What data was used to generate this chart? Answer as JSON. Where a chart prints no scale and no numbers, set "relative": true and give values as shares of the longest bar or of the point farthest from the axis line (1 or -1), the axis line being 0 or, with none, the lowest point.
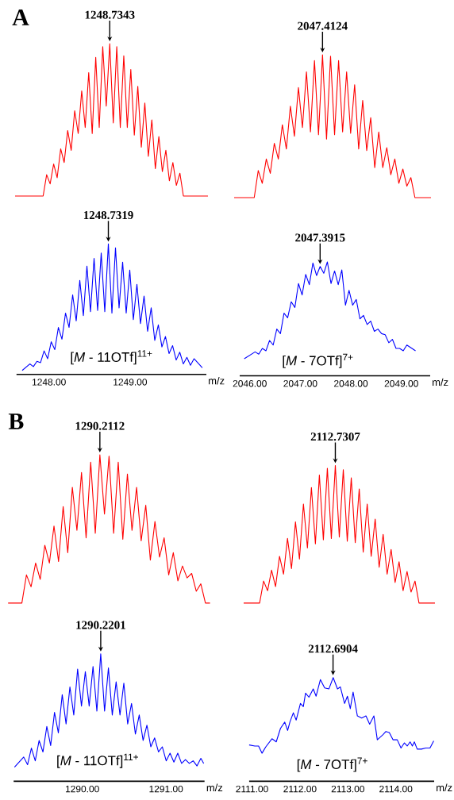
{
  "chart_data": [
    {
      "type": "line",
      "title": "A",
      "relative": true,
      "tick_labels": false,
      "categories": [
        null,
        null,
        null,
        null,
        null,
        null,
        null,
        null,
        null,
        null,
        null,
        null,
        null,
        null,
        null,
        null,
        null,
        null,
        null,
        null,
        null,
        null,
        null,
        null,
        null,
        null,
        null,
        null,
        null,
        null,
        null,
        null,
        null,
        null,
        null,
        null,
        null,
        null,
        null,
        null,
        null,
        null,
        null,
        null,
        null,
        null,
        null,
        null,
        null,
        null,
        null,
        null,
        null,
        null,
        null,
        null
      ],
      "series": [
        {
          "color": "#ff0000",
          "values": [
            0,
            0,
            0,
            0,
            0,
            0,
            0,
            0,
            0,
            0.14,
            0.08,
            0.21,
            0.12,
            0.31,
            0.22,
            0.43,
            0.3,
            0.56,
            0.41,
            0.69,
            0.45,
            0.81,
            0.41,
            0.91,
            0.45,
            0.98,
            0.59,
            1.0,
            0.48,
            0.98,
            0.45,
            0.92,
            0.45,
            0.83,
            0.4,
            0.72,
            0.32,
            0.61,
            0.26,
            0.5,
            0.18,
            0.39,
            0.16,
            0.3,
            0.1,
            0.22,
            0.07,
            0.15,
            0,
            0,
            0,
            0,
            0,
            0,
            0,
            0
          ]
        }
      ],
      "annotations": [
        {
          "text": "1248.7343",
          "y": 1.0
        }
      ]
    },
    {
      "type": "line",
      "relative": true,
      "tick_labels": false,
      "categories": [
        null,
        null,
        null,
        null,
        null,
        null,
        null,
        null,
        null,
        null,
        null,
        null,
        null,
        null,
        null,
        null,
        null,
        null,
        null,
        null,
        null,
        null,
        null,
        null,
        null,
        null,
        null,
        null,
        null,
        null,
        null,
        null,
        null,
        null,
        null,
        null,
        null,
        null,
        null,
        null,
        null,
        null,
        null,
        null,
        null,
        null,
        null,
        null,
        null,
        null
      ],
      "series": [
        {
          "color": "#ff0000",
          "values": [
            0,
            0,
            0,
            0,
            0,
            0,
            0.19,
            0.1,
            0.27,
            0.17,
            0.38,
            0.27,
            0.51,
            0.34,
            0.64,
            0.43,
            0.77,
            0.49,
            0.88,
            0.46,
            0.96,
            0.44,
            1.0,
            0.41,
            0.99,
            0.44,
            0.96,
            0.46,
            0.88,
            0.45,
            0.79,
            0.34,
            0.68,
            0.33,
            0.56,
            0.21,
            0.46,
            0.21,
            0.35,
            0.16,
            0.27,
            0.1,
            0.2,
            0.08,
            0.14,
            0,
            0,
            0,
            0,
            0
          ]
        }
      ],
      "annotations": [
        {
          "text": "2047.4124",
          "y": 1.0
        }
      ]
    },
    {
      "type": "line",
      "relative": true,
      "xlim": [
        1247.6,
        1249.94
      ],
      "tick_labels": "x",
      "xlabel": "m/z",
      "xticks": [
        {
          "value": 1248,
          "label": "1248.00"
        },
        {
          "value": 1249,
          "label": "1249.00"
        }
      ],
      "x": [
        1247.67,
        1247.764,
        1247.808,
        1247.852,
        1247.896,
        1247.94,
        1247.984,
        1248.028,
        1248.072,
        1248.116,
        1248.16,
        1248.204,
        1248.248,
        1248.292,
        1248.336,
        1248.38,
        1248.424,
        1248.468,
        1248.512,
        1248.556,
        1248.6,
        1248.644,
        1248.688,
        1248.732,
        1248.776,
        1248.82,
        1248.864,
        1248.908,
        1248.952,
        1248.996,
        1249.04,
        1249.084,
        1249.128,
        1249.172,
        1249.216,
        1249.26,
        1249.304,
        1249.348,
        1249.392,
        1249.436,
        1249.48,
        1249.524,
        1249.568,
        1249.612,
        1249.656,
        1249.7,
        1249.744,
        1249.788,
        1249.89
      ],
      "series": [
        {
          "color": "#0000ff",
          "values": [
            0.03,
            0.08,
            0.06,
            0.1,
            0.09,
            0.18,
            0.12,
            0.25,
            0.19,
            0.36,
            0.27,
            0.47,
            0.36,
            0.61,
            0.41,
            0.72,
            0.45,
            0.83,
            0.48,
            0.89,
            0.49,
            0.93,
            0.48,
            1.0,
            0.47,
            0.97,
            0.51,
            0.86,
            0.47,
            0.8,
            0.42,
            0.69,
            0.39,
            0.6,
            0.33,
            0.51,
            0.26,
            0.38,
            0.21,
            0.29,
            0.16,
            0.22,
            0.11,
            0.17,
            0.08,
            0.13,
            0.07,
            0.12,
            0.05
          ]
        }
      ],
      "annotations": [
        {
          "text": "1248.7319",
          "x": 1248.7319,
          "y": 1.0
        },
        "[*M* - 11OTf]$^{11+}$"
      ]
    },
    {
      "type": "line",
      "relative": true,
      "xlim": [
        2045.8,
        2049.57
      ],
      "tick_labels": "x",
      "xlabel": "m/z",
      "xticks": [
        {
          "value": 2046,
          "label": "2046.00"
        },
        {
          "value": 2047,
          "label": "2047.00"
        },
        {
          "value": 2048,
          "label": "2048.00"
        },
        {
          "value": 2049,
          "label": "2049.00"
        }
      ],
      "x": [
        2045.89,
        2046.105,
        2046.177,
        2046.248,
        2046.32,
        2046.391,
        2046.463,
        2046.534,
        2046.606,
        2046.677,
        2046.749,
        2046.82,
        2046.892,
        2046.963,
        2047.035,
        2047.106,
        2047.178,
        2047.249,
        2047.321,
        2047.392,
        2047.464,
        2047.535,
        2047.607,
        2047.678,
        2047.75,
        2047.821,
        2047.893,
        2047.964,
        2048.036,
        2048.107,
        2048.179,
        2048.25,
        2048.322,
        2048.393,
        2048.465,
        2048.536,
        2048.608,
        2048.679,
        2048.751,
        2048.822,
        2048.894,
        2048.965,
        2049.037,
        2049.108,
        2049.28
      ],
      "series": [
        {
          "color": "#0000ff",
          "values": [
            0.15,
            0.21,
            0.19,
            0.24,
            0.22,
            0.31,
            0.27,
            0.41,
            0.37,
            0.55,
            0.51,
            0.65,
            0.6,
            0.81,
            0.71,
            0.89,
            0.8,
            0.99,
            0.88,
            0.96,
            0.9,
            1.0,
            0.81,
            0.92,
            0.8,
            0.93,
            0.62,
            0.75,
            0.62,
            0.67,
            0.5,
            0.53,
            0.45,
            0.48,
            0.39,
            0.41,
            0.37,
            0.36,
            0.29,
            0.32,
            0.24,
            0.24,
            0.22,
            0.27,
            0.22
          ]
        }
      ],
      "annotations": [
        {
          "text": "2047.3915",
          "x": 2047.3915,
          "y": 0.96
        },
        "[*M* - 7OTf]$^{7+}$"
      ]
    },
    {
      "type": "line",
      "title": "B",
      "relative": true,
      "tick_labels": false,
      "categories": [
        null,
        null,
        null,
        null,
        null,
        null,
        null,
        null,
        null,
        null,
        null,
        null,
        null,
        null,
        null,
        null,
        null,
        null,
        null,
        null,
        null,
        null,
        null,
        null,
        null,
        null,
        null,
        null,
        null,
        null,
        null,
        null,
        null,
        null,
        null,
        null,
        null,
        null,
        null,
        null,
        null,
        null,
        null,
        null,
        null
      ],
      "series": [
        {
          "color": "#ff0000",
          "values": [
            0,
            0,
            0,
            0,
            0.19,
            0.11,
            0.27,
            0.16,
            0.39,
            0.27,
            0.52,
            0.28,
            0.65,
            0.34,
            0.78,
            0.49,
            0.88,
            0.44,
            0.95,
            0.47,
            1.0,
            0.6,
            0.99,
            0.47,
            0.95,
            0.43,
            0.87,
            0.49,
            0.78,
            0.42,
            0.66,
            0.29,
            0.55,
            0.31,
            0.44,
            0.19,
            0.34,
            0.15,
            0.25,
            0.17,
            0.2,
            0.08,
            0.13,
            0,
            0
          ]
        }
      ],
      "annotations": [
        {
          "text": "1290.2112",
          "y": 1.0
        }
      ]
    },
    {
      "type": "line",
      "relative": true,
      "tick_labels": false,
      "categories": [
        null,
        null,
        null,
        null,
        null,
        null,
        null,
        null,
        null,
        null,
        null,
        null,
        null,
        null,
        null,
        null,
        null,
        null,
        null,
        null,
        null,
        null,
        null,
        null,
        null,
        null,
        null,
        null,
        null,
        null,
        null,
        null,
        null,
        null,
        null,
        null,
        null,
        null,
        null,
        null,
        null,
        null,
        null,
        null,
        null,
        null,
        null,
        null,
        null
      ],
      "series": [
        {
          "color": "#ff0000",
          "values": [
            0,
            0,
            0,
            0,
            0,
            0.16,
            0.09,
            0.24,
            0.12,
            0.34,
            0.21,
            0.47,
            0.25,
            0.59,
            0.32,
            0.72,
            0.4,
            0.84,
            0.43,
            0.93,
            0.46,
            0.98,
            0.47,
            1.0,
            0.48,
            0.97,
            0.45,
            0.91,
            0.44,
            0.83,
            0.37,
            0.72,
            0.34,
            0.61,
            0.26,
            0.5,
            0.21,
            0.39,
            0.15,
            0.3,
            0.09,
            0.23,
            0.08,
            0.16,
            0,
            0,
            0,
            0,
            0
          ]
        }
      ],
      "annotations": [
        {
          "text": "2112.7307",
          "y": 1.0
        }
      ]
    },
    {
      "type": "line",
      "relative": true,
      "xlim": [
        1289.18,
        1291.46
      ],
      "tick_labels": "x",
      "xlabel": "m/z",
      "xticks": [
        {
          "value": 1290,
          "label": "1290.00"
        },
        {
          "value": 1291,
          "label": "1291.00"
        }
      ],
      "x": [
        1289.19,
        1289.3,
        1289.346,
        1289.392,
        1289.438,
        1289.484,
        1289.53,
        1289.576,
        1289.622,
        1289.668,
        1289.714,
        1289.76,
        1289.806,
        1289.852,
        1289.898,
        1289.944,
        1289.99,
        1290.036,
        1290.082,
        1290.128,
        1290.174,
        1290.22,
        1290.266,
        1290.312,
        1290.358,
        1290.404,
        1290.45,
        1290.496,
        1290.542,
        1290.588,
        1290.634,
        1290.68,
        1290.726,
        1290.772,
        1290.818,
        1290.864,
        1290.91,
        1290.956,
        1291.002,
        1291.048,
        1291.094,
        1291.14,
        1291.186,
        1291.232,
        1291.278,
        1291.324,
        1291.37,
        1291.416,
        1291.45
      ],
      "series": [
        {
          "color": "#0000ff",
          "values": [
            0.11,
            0.19,
            0.13,
            0.26,
            0.16,
            0.32,
            0.23,
            0.43,
            0.28,
            0.54,
            0.38,
            0.68,
            0.45,
            0.74,
            0.52,
            0.88,
            0.59,
            0.86,
            0.59,
            0.9,
            0.55,
            1.0,
            0.55,
            0.89,
            0.52,
            0.78,
            0.52,
            0.77,
            0.45,
            0.61,
            0.37,
            0.52,
            0.32,
            0.44,
            0.27,
            0.34,
            0.23,
            0.27,
            0.16,
            0.22,
            0.15,
            0.22,
            0.14,
            0.17,
            0.14,
            0.16,
            0.12,
            0.18,
            0.14
          ]
        }
      ],
      "annotations": [
        {
          "text": "1290.2201",
          "x": 1290.2201,
          "y": 1.0
        },
        "[*M* - 11OTf]$^{11+}$"
      ]
    },
    {
      "type": "line",
      "relative": true,
      "xlim": [
        2110.94,
        2114.8
      ],
      "tick_labels": "x",
      "xlabel": "m/z",
      "xticks": [
        {
          "value": 2111,
          "label": "2111.00"
        },
        {
          "value": 2112,
          "label": "2112.00"
        },
        {
          "value": 2113,
          "label": "2113.00"
        },
        {
          "value": 2114,
          "label": "2114.00"
        }
      ],
      "x": [
        2110.94,
        2111.059,
        2111.137,
        2111.208,
        2111.285,
        2111.416,
        2111.505,
        2111.594,
        2111.683,
        2111.743,
        2111.79,
        2111.862,
        2111.921,
        2112.01,
        2112.07,
        2112.117,
        2112.188,
        2112.277,
        2112.337,
        2112.426,
        2112.515,
        2112.604,
        2112.693,
        2112.783,
        2112.842,
        2112.931,
        2112.99,
        2113.05,
        2113.109,
        2113.198,
        2113.288,
        2113.377,
        2113.454,
        2113.543,
        2113.614,
        2113.733,
        2113.793,
        2113.864,
        2113.941,
        2114.03,
        2114.108,
        2114.179,
        2114.238,
        2114.298,
        2114.345,
        2114.387,
        2114.446,
        2114.535,
        2114.624,
        2114.713,
        2114.791
      ],
      "series": [
        {
          "color": "#0000ff",
          "values": [
            0.35,
            0.34,
            0.34,
            0.27,
            0.33,
            0.41,
            0.38,
            0.51,
            0.57,
            0.49,
            0.57,
            0.66,
            0.59,
            0.75,
            0.72,
            0.85,
            0.81,
            0.89,
            0.82,
            0.98,
            0.9,
            0.89,
            1.0,
            0.89,
            0.91,
            0.75,
            0.82,
            0.7,
            0.86,
            0.63,
            0.61,
            0.63,
            0.55,
            0.63,
            0.4,
            0.45,
            0.48,
            0.47,
            0.4,
            0.4,
            0.32,
            0.37,
            0.34,
            0.38,
            0.34,
            0.38,
            0.31,
            0.31,
            0.32,
            0.32,
            0.39
          ]
        }
      ],
      "annotations": [
        {
          "text": "2112.6904",
          "x": 2112.6904,
          "y": 1.0
        },
        "[*M* - 7OTf]$^{7+}$"
      ]
    }
  ]
}
